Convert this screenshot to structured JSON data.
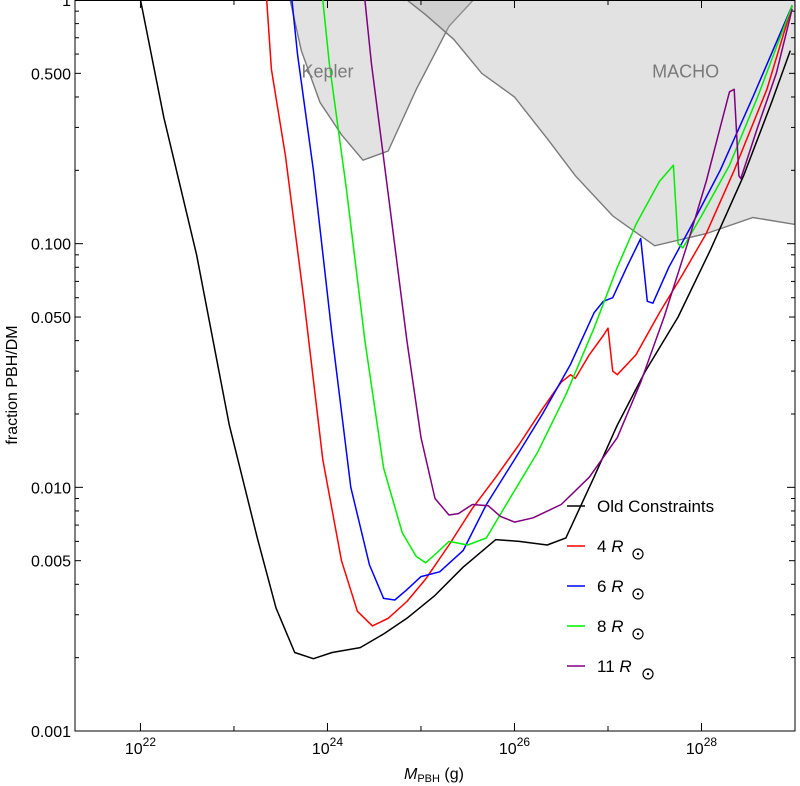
{
  "chart_data": {
    "type": "line",
    "title": "",
    "xlabel_main": "M",
    "xlabel_sub": "PBH",
    "xlabel_unit": " (g)",
    "ylabel": "fraction PBH/DM",
    "x_log": true,
    "y_log": true,
    "xlim_log10": [
      21.3,
      29.0
    ],
    "ylim": [
      0.001,
      1
    ],
    "x_ticks": [
      {
        "exp": 22,
        "base": "10",
        "power": "22"
      },
      {
        "exp": 24,
        "base": "10",
        "power": "24"
      },
      {
        "exp": 26,
        "base": "10",
        "power": "26"
      },
      {
        "exp": 28,
        "base": "10",
        "power": "28"
      }
    ],
    "y_ticks": [
      {
        "value": 1,
        "label": "1"
      },
      {
        "value": 0.5,
        "label": "0.500"
      },
      {
        "value": 0.1,
        "label": "0.100"
      },
      {
        "value": 0.05,
        "label": "0.050"
      },
      {
        "value": 0.01,
        "label": "0.010"
      },
      {
        "value": 0.005,
        "label": "0.005"
      },
      {
        "value": 0.001,
        "label": "0.001"
      }
    ],
    "regions": [
      {
        "name": "Kepler",
        "label_at": [
          22.45,
          0.51
        ],
        "boundary": [
          [
            23.6,
            1.0
          ],
          [
            23.72,
            0.62
          ],
          [
            23.92,
            0.38
          ],
          [
            24.15,
            0.28
          ],
          [
            24.38,
            0.22
          ],
          [
            24.65,
            0.24
          ],
          [
            24.95,
            0.43
          ],
          [
            25.3,
            0.78
          ],
          [
            25.56,
            1.0
          ]
        ]
      },
      {
        "name": "MACHO",
        "label_at": [
          26.28,
          0.51
        ],
        "boundary": [
          [
            24.85,
            1.0
          ],
          [
            25.05,
            0.87
          ],
          [
            25.35,
            0.69
          ],
          [
            25.65,
            0.5
          ],
          [
            26.0,
            0.4
          ],
          [
            26.35,
            0.27
          ],
          [
            26.65,
            0.19
          ],
          [
            27.05,
            0.13
          ],
          [
            27.5,
            0.098
          ],
          [
            28.05,
            0.11
          ],
          [
            28.55,
            0.128
          ],
          [
            29.0,
            0.12
          ],
          [
            29.0,
            1.0
          ]
        ]
      }
    ],
    "legend": {
      "placement": "bottom-right"
    },
    "series": [
      {
        "name": "Old Constraints",
        "color": "#000000",
        "label_main": "Old Constraints",
        "label_sub": "",
        "points": [
          [
            22.0,
            1.0
          ],
          [
            22.25,
            0.33
          ],
          [
            22.6,
            0.09
          ],
          [
            22.95,
            0.018
          ],
          [
            23.25,
            0.0062
          ],
          [
            23.45,
            0.0032
          ],
          [
            23.65,
            0.0021
          ],
          [
            23.85,
            0.00198
          ],
          [
            24.05,
            0.0021
          ],
          [
            24.35,
            0.0022
          ],
          [
            24.6,
            0.0025
          ],
          [
            24.85,
            0.0029
          ],
          [
            25.15,
            0.0036
          ],
          [
            25.45,
            0.0047
          ],
          [
            25.8,
            0.0061
          ],
          [
            26.05,
            0.006
          ],
          [
            26.35,
            0.0058
          ],
          [
            26.55,
            0.0062
          ],
          [
            26.85,
            0.011
          ],
          [
            27.1,
            0.018
          ],
          [
            27.4,
            0.03
          ],
          [
            27.75,
            0.05
          ],
          [
            28.1,
            0.095
          ],
          [
            28.45,
            0.19
          ],
          [
            28.75,
            0.38
          ],
          [
            28.95,
            0.62
          ]
        ]
      },
      {
        "name": "4 R☉",
        "color": "#ff0000",
        "label_main": "4 ",
        "label_sub": "R",
        "points": [
          [
            23.35,
            1.0
          ],
          [
            23.4,
            0.52
          ],
          [
            23.55,
            0.23
          ],
          [
            23.75,
            0.058
          ],
          [
            23.95,
            0.013
          ],
          [
            24.15,
            0.005
          ],
          [
            24.32,
            0.0031
          ],
          [
            24.48,
            0.0027
          ],
          [
            24.65,
            0.0029
          ],
          [
            24.85,
            0.0034
          ],
          [
            25.05,
            0.0042
          ],
          [
            25.3,
            0.0058
          ],
          [
            25.55,
            0.0082
          ],
          [
            25.8,
            0.011
          ],
          [
            26.05,
            0.015
          ],
          [
            26.3,
            0.021
          ],
          [
            26.5,
            0.027
          ],
          [
            26.6,
            0.029
          ],
          [
            26.65,
            0.028
          ],
          [
            26.8,
            0.035
          ],
          [
            26.95,
            0.042
          ],
          [
            27.0,
            0.045
          ],
          [
            27.05,
            0.03
          ],
          [
            27.1,
            0.029
          ],
          [
            27.3,
            0.035
          ],
          [
            27.55,
            0.052
          ],
          [
            27.8,
            0.075
          ],
          [
            28.05,
            0.11
          ],
          [
            28.35,
            0.2
          ],
          [
            28.7,
            0.43
          ],
          [
            28.97,
            0.95
          ]
        ]
      },
      {
        "name": "6 R☉",
        "color": "#0000ff",
        "label_main": "6 ",
        "label_sub": "R",
        "points": [
          [
            23.62,
            1.0
          ],
          [
            23.68,
            0.6
          ],
          [
            23.85,
            0.2
          ],
          [
            24.05,
            0.042
          ],
          [
            24.25,
            0.01
          ],
          [
            24.45,
            0.0048
          ],
          [
            24.6,
            0.0035
          ],
          [
            24.72,
            0.00345
          ],
          [
            24.85,
            0.0038
          ],
          [
            25.0,
            0.0043
          ],
          [
            25.2,
            0.0045
          ],
          [
            25.45,
            0.0055
          ],
          [
            25.7,
            0.0085
          ],
          [
            26.0,
            0.013
          ],
          [
            26.3,
            0.02
          ],
          [
            26.6,
            0.032
          ],
          [
            26.85,
            0.052
          ],
          [
            26.95,
            0.058
          ],
          [
            27.05,
            0.06
          ],
          [
            27.2,
            0.08
          ],
          [
            27.35,
            0.105
          ],
          [
            27.42,
            0.058
          ],
          [
            27.48,
            0.057
          ],
          [
            27.65,
            0.08
          ],
          [
            27.9,
            0.12
          ],
          [
            28.2,
            0.2
          ],
          [
            28.55,
            0.4
          ],
          [
            28.97,
            0.95
          ]
        ]
      },
      {
        "name": "8 R☉",
        "color": "#00ee00",
        "label_main": "8 ",
        "label_sub": "R",
        "points": [
          [
            23.95,
            1.0
          ],
          [
            24.02,
            0.55
          ],
          [
            24.2,
            0.17
          ],
          [
            24.4,
            0.04
          ],
          [
            24.6,
            0.012
          ],
          [
            24.8,
            0.0065
          ],
          [
            24.95,
            0.0052
          ],
          [
            25.05,
            0.0049
          ],
          [
            25.15,
            0.0053
          ],
          [
            25.3,
            0.006
          ],
          [
            25.5,
            0.0058
          ],
          [
            25.7,
            0.0062
          ],
          [
            25.95,
            0.009
          ],
          [
            26.25,
            0.014
          ],
          [
            26.55,
            0.024
          ],
          [
            26.85,
            0.045
          ],
          [
            27.1,
            0.08
          ],
          [
            27.3,
            0.12
          ],
          [
            27.55,
            0.18
          ],
          [
            27.7,
            0.21
          ],
          [
            27.75,
            0.1
          ],
          [
            27.8,
            0.096
          ],
          [
            28.0,
            0.13
          ],
          [
            28.3,
            0.21
          ],
          [
            28.6,
            0.4
          ],
          [
            28.97,
            0.95
          ]
        ]
      },
      {
        "name": "11 R☉",
        "color": "#800080",
        "label_main": "11 ",
        "label_sub": "R",
        "points": [
          [
            24.4,
            1.0
          ],
          [
            24.47,
            0.55
          ],
          [
            24.65,
            0.16
          ],
          [
            24.85,
            0.04
          ],
          [
            25.0,
            0.016
          ],
          [
            25.15,
            0.009
          ],
          [
            25.3,
            0.0077
          ],
          [
            25.4,
            0.0078
          ],
          [
            25.55,
            0.0085
          ],
          [
            25.72,
            0.0084
          ],
          [
            25.85,
            0.0076
          ],
          [
            26.0,
            0.0072
          ],
          [
            26.2,
            0.0075
          ],
          [
            26.5,
            0.0085
          ],
          [
            26.8,
            0.011
          ],
          [
            27.1,
            0.016
          ],
          [
            27.35,
            0.027
          ],
          [
            27.6,
            0.05
          ],
          [
            27.85,
            0.1
          ],
          [
            28.05,
            0.18
          ],
          [
            28.2,
            0.3
          ],
          [
            28.3,
            0.42
          ],
          [
            28.35,
            0.43
          ],
          [
            28.4,
            0.19
          ],
          [
            28.42,
            0.185
          ],
          [
            28.6,
            0.3
          ],
          [
            28.8,
            0.5
          ],
          [
            28.97,
            0.92
          ]
        ]
      }
    ]
  }
}
